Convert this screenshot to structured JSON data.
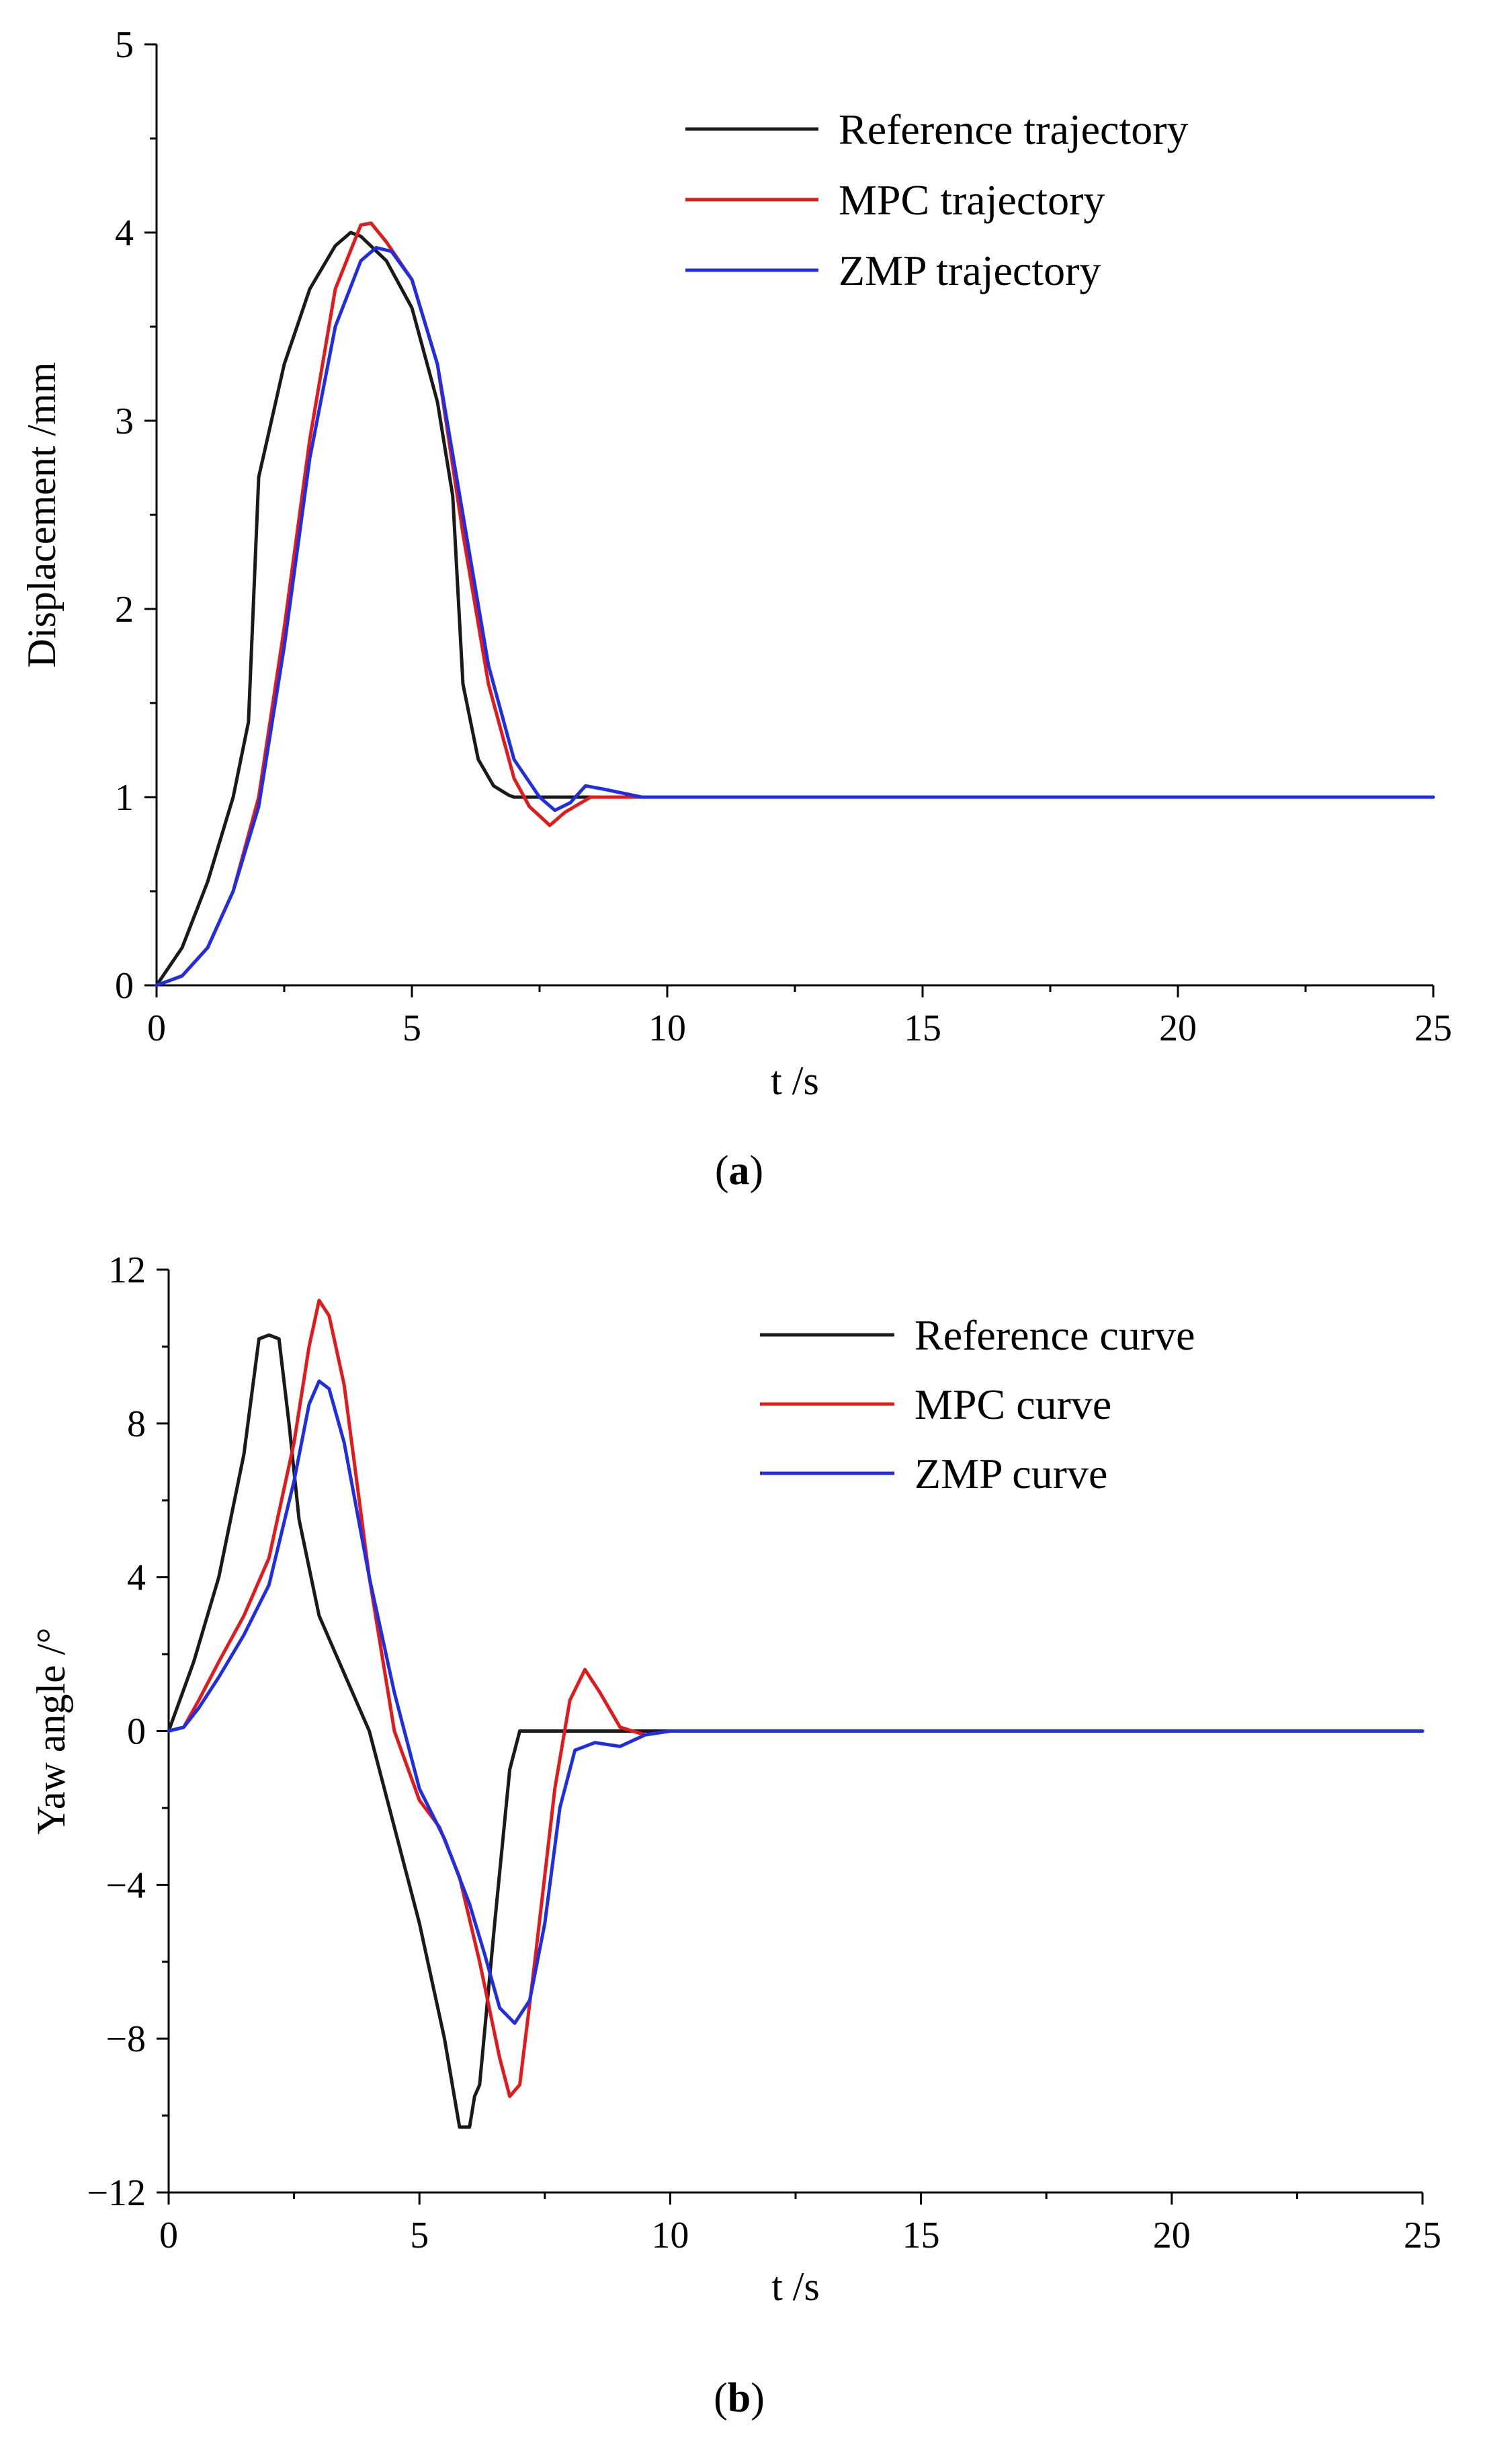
{
  "chart_data": [
    {
      "type": "line",
      "panel": "a",
      "panel_label": "a",
      "title": "",
      "xlabel": "t /s",
      "ylabel": "Displacement /mm",
      "xlim": [
        0,
        25
      ],
      "ylim": [
        0,
        5
      ],
      "xticks": [
        0,
        5,
        10,
        15,
        20,
        25
      ],
      "yticks": [
        0,
        1,
        2,
        3,
        4,
        5
      ],
      "grid": false,
      "legend_position": "top-right",
      "series": [
        {
          "name": "Reference trajectory",
          "color": "#1a1a1a",
          "x": [
            0,
            0.5,
            1.0,
            1.5,
            1.8,
            2.0,
            2.5,
            3.0,
            3.5,
            3.8,
            4.0,
            4.5,
            5.0,
            5.5,
            5.8,
            6.0,
            6.3,
            6.6,
            6.9,
            7.0,
            7.5,
            8.0,
            10,
            15,
            20,
            25
          ],
          "y": [
            0,
            0.2,
            0.55,
            1.0,
            1.4,
            2.7,
            3.3,
            3.7,
            3.93,
            4.0,
            3.98,
            3.85,
            3.6,
            3.1,
            2.6,
            1.6,
            1.2,
            1.06,
            1.01,
            1.0,
            1.0,
            1.0,
            1.0,
            1.0,
            1.0,
            1.0
          ]
        },
        {
          "name": "MPC trajectory",
          "color": "#e31a1c",
          "x": [
            0,
            0.5,
            1.0,
            1.5,
            2.0,
            2.5,
            3.0,
            3.5,
            4.0,
            4.2,
            4.5,
            5.0,
            5.5,
            6.0,
            6.5,
            7.0,
            7.3,
            7.7,
            8.0,
            8.5,
            9.0,
            10,
            15,
            20,
            25
          ],
          "y": [
            0,
            0.05,
            0.2,
            0.5,
            1.0,
            1.9,
            2.9,
            3.7,
            4.04,
            4.05,
            3.95,
            3.75,
            3.3,
            2.4,
            1.6,
            1.1,
            0.95,
            0.85,
            0.92,
            1.0,
            1.0,
            1.0,
            1.0,
            1.0,
            1.0
          ]
        },
        {
          "name": "ZMP trajectory",
          "color": "#1f2ee3",
          "x": [
            0,
            0.5,
            1.0,
            1.5,
            2.0,
            2.5,
            3.0,
            3.5,
            4.0,
            4.3,
            4.6,
            5.0,
            5.5,
            6.0,
            6.5,
            7.0,
            7.5,
            7.8,
            8.1,
            8.4,
            8.8,
            9.5,
            10,
            15,
            20,
            25
          ],
          "y": [
            0,
            0.05,
            0.2,
            0.5,
            0.95,
            1.8,
            2.8,
            3.5,
            3.85,
            3.92,
            3.9,
            3.75,
            3.3,
            2.5,
            1.7,
            1.2,
            1.0,
            0.93,
            0.97,
            1.06,
            1.04,
            1.0,
            1.0,
            1.0,
            1.0,
            1.0
          ]
        }
      ]
    },
    {
      "type": "line",
      "panel": "b",
      "panel_label": "b",
      "title": "",
      "xlabel": "t /s",
      "ylabel": "Yaw angle /°",
      "xlim": [
        0,
        25
      ],
      "ylim": [
        -12,
        12
      ],
      "xticks": [
        0,
        5,
        10,
        15,
        20,
        25
      ],
      "yticks": [
        -12,
        -8,
        -4,
        0,
        4,
        8,
        12
      ],
      "grid": false,
      "legend_position": "top-right",
      "series": [
        {
          "name": "Reference curve",
          "color": "#1a1a1a",
          "x": [
            0,
            0.5,
            1.0,
            1.5,
            1.8,
            2.0,
            2.2,
            2.4,
            2.6,
            3.0,
            3.5,
            4.0,
            4.5,
            5.0,
            5.5,
            5.8,
            6.0,
            6.1,
            6.2,
            6.5,
            6.8,
            7.0,
            8,
            10,
            15,
            20,
            25
          ],
          "y": [
            0,
            1.8,
            4.0,
            7.2,
            10.2,
            10.3,
            10.2,
            8.0,
            5.5,
            3.0,
            1.5,
            0,
            -2.5,
            -5.0,
            -8.0,
            -10.3,
            -10.3,
            -9.5,
            -9.2,
            -5.0,
            -1.0,
            0,
            0,
            0,
            0,
            0,
            0
          ]
        },
        {
          "name": "MPC curve",
          "color": "#e31a1c",
          "x": [
            0,
            0.3,
            0.6,
            1.0,
            1.5,
            2.0,
            2.5,
            2.8,
            3.0,
            3.2,
            3.5,
            4.0,
            4.5,
            5.0,
            5.4,
            5.8,
            6.2,
            6.6,
            6.8,
            7.0,
            7.3,
            7.7,
            8.0,
            8.3,
            8.6,
            9.0,
            9.5,
            10,
            15,
            20,
            25
          ],
          "y": [
            0,
            0.1,
            0.8,
            1.8,
            3.0,
            4.5,
            7.5,
            10.0,
            11.2,
            10.8,
            9.0,
            4.0,
            0,
            -1.8,
            -2.5,
            -3.8,
            -6.0,
            -8.5,
            -9.5,
            -9.2,
            -6.0,
            -1.5,
            0.8,
            1.6,
            1.0,
            0.1,
            -0.1,
            0,
            0,
            0,
            0
          ]
        },
        {
          "name": "ZMP curve",
          "color": "#1f2ee3",
          "x": [
            0,
            0.3,
            0.6,
            1.0,
            1.5,
            2.0,
            2.5,
            2.8,
            3.0,
            3.2,
            3.5,
            4.0,
            4.5,
            5.0,
            5.5,
            6.0,
            6.3,
            6.6,
            6.9,
            7.2,
            7.5,
            7.8,
            8.1,
            8.5,
            9.0,
            9.5,
            10,
            11,
            15,
            20,
            25
          ],
          "y": [
            0,
            0.1,
            0.6,
            1.4,
            2.5,
            3.8,
            6.5,
            8.5,
            9.1,
            8.9,
            7.5,
            4.0,
            1.0,
            -1.5,
            -2.8,
            -4.5,
            -5.8,
            -7.2,
            -7.6,
            -7.0,
            -5.0,
            -2.0,
            -0.5,
            -0.3,
            -0.4,
            -0.1,
            0,
            0,
            0,
            0,
            0
          ]
        }
      ]
    }
  ]
}
